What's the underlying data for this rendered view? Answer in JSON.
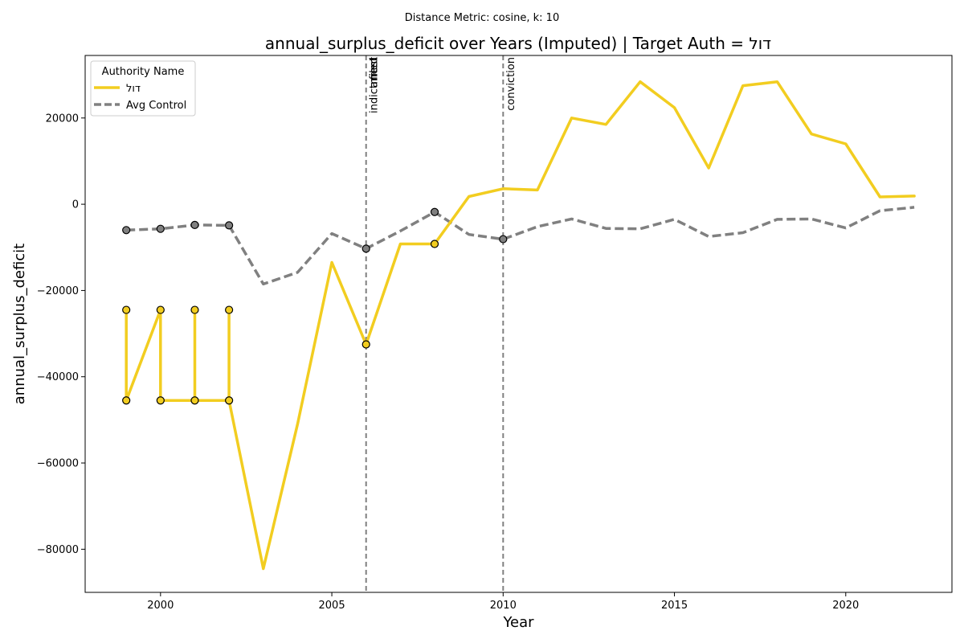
{
  "chart_data": {
    "type": "line",
    "suptitle": "Distance Metric: cosine, k: 10",
    "title": "annual_surplus_deficit over Years (Imputed) | Target Auth = דול",
    "xlabel": "Year",
    "ylabel": "annual_surplus_deficit",
    "xlim": [
      1997.8,
      2023.1
    ],
    "ylim": [
      -90000,
      34500
    ],
    "xticks": [
      2000,
      2005,
      2010,
      2015,
      2020
    ],
    "yticks": [
      20000,
      0,
      -20000,
      -40000,
      -60000,
      -80000
    ],
    "ytick_labels": [
      "20000",
      "0",
      "−20000",
      "−40000",
      "−60000",
      "−80000"
    ],
    "legend": {
      "title": "Authority Name",
      "position": "upper-left",
      "entries": [
        "דול",
        "Avg Control"
      ]
    },
    "series": [
      {
        "name": "דול",
        "color": "#f2cd20",
        "style": "solid",
        "x": [
          1999,
          1999,
          1999,
          2000,
          2000,
          2000,
          2001,
          2001,
          2001,
          2002,
          2002,
          2002,
          2003,
          2004,
          2005,
          2006,
          2007,
          2008,
          2009,
          2010,
          2011,
          2012,
          2013,
          2014,
          2015,
          2016,
          2017,
          2018,
          2019,
          2020,
          2021,
          2022
        ],
        "y": [
          -24500,
          -45500,
          -45500,
          -24500,
          -45500,
          -45500,
          -45500,
          -24500,
          -45500,
          -45500,
          -24500,
          -45500,
          -84500,
          -51000,
          -13500,
          -32500,
          -9200,
          -9200,
          1800,
          3600,
          3300,
          20000,
          18500,
          28400,
          22400,
          8400,
          27500,
          28400,
          16300,
          14000,
          1700,
          1900
        ],
        "markers": [
          {
            "x": 1999,
            "y": -24500
          },
          {
            "x": 1999,
            "y": -45500
          },
          {
            "x": 2000,
            "y": -24500
          },
          {
            "x": 2000,
            "y": -45500
          },
          {
            "x": 2001,
            "y": -24500
          },
          {
            "x": 2001,
            "y": -45500
          },
          {
            "x": 2002,
            "y": -24500
          },
          {
            "x": 2002,
            "y": -45500
          },
          {
            "x": 2006,
            "y": -32500
          },
          {
            "x": 2008,
            "y": -9200
          }
        ]
      },
      {
        "name": "Avg Control",
        "color": "#808080",
        "style": "dashed",
        "x": [
          1999,
          2000,
          2001,
          2002,
          2003,
          2004,
          2005,
          2006,
          2007,
          2008,
          2009,
          2010,
          2011,
          2012,
          2013,
          2014,
          2015,
          2016,
          2017,
          2018,
          2019,
          2020,
          2021,
          2022
        ],
        "y": [
          -6000,
          -5700,
          -4800,
          -4900,
          -18500,
          -15800,
          -6800,
          -10300,
          -6200,
          -1800,
          -7000,
          -8100,
          -5200,
          -3400,
          -5600,
          -5700,
          -3500,
          -7500,
          -6600,
          -3500,
          -3400,
          -5500,
          -1500,
          -700
        ],
        "markers": [
          {
            "x": 1999,
            "y": -6000
          },
          {
            "x": 2000,
            "y": -5700
          },
          {
            "x": 2001,
            "y": -4800
          },
          {
            "x": 2002,
            "y": -4900
          },
          {
            "x": 2006,
            "y": -10300
          },
          {
            "x": 2008,
            "y": -1800
          },
          {
            "x": 2010,
            "y": -8100
          }
        ]
      }
    ],
    "events": [
      {
        "x": 2006,
        "labels": [
          "indictment",
          "arrest",
          "filed"
        ]
      },
      {
        "x": 2010,
        "labels": [
          "conviction"
        ]
      }
    ]
  }
}
